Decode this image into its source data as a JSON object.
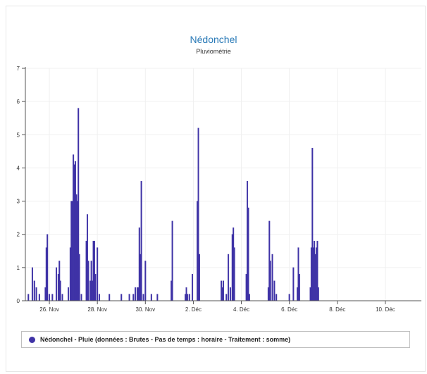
{
  "chart_data": {
    "type": "bar",
    "title": "Nédonchel",
    "subtitle": "Pluviométrie",
    "xlabel": "",
    "ylabel": "",
    "ylim": [
      0,
      7
    ],
    "yticks": [
      0,
      1,
      2,
      3,
      4,
      5,
      6,
      7
    ],
    "xlim": [
      "2013-11-25T00:00",
      "2013-12-11T12:00"
    ],
    "xticks": [
      {
        "label": "26. Nov",
        "date": "2013-11-26T00:00"
      },
      {
        "label": "28. Nov",
        "date": "2013-11-28T00:00"
      },
      {
        "label": "30. Nov",
        "date": "2013-11-30T00:00"
      },
      {
        "label": "2. Déc",
        "date": "2013-12-02T00:00"
      },
      {
        "label": "4. Déc",
        "date": "2013-12-04T00:00"
      },
      {
        "label": "6. Déc",
        "date": "2013-12-06T00:00"
      },
      {
        "label": "8. Déc",
        "date": "2013-12-08T00:00"
      },
      {
        "label": "10. Déc",
        "date": "2013-12-10T00:00"
      }
    ],
    "grid": true,
    "legend_position": "bottom",
    "series": [
      {
        "name": "Nédonchel - Pluie (données : Brutes - Pas de temps : horaire - Traitement : somme)",
        "color": "#3f33a6",
        "points": [
          [
            "2013-11-25T03:00",
            0.2
          ],
          [
            "2013-11-25T07:00",
            1.0
          ],
          [
            "2013-11-25T09:00",
            0.6
          ],
          [
            "2013-11-25T11:00",
            0.4
          ],
          [
            "2013-11-25T14:00",
            0.2
          ],
          [
            "2013-11-25T20:00",
            0.4
          ],
          [
            "2013-11-25T21:00",
            1.6
          ],
          [
            "2013-11-25T22:00",
            2.0
          ],
          [
            "2013-11-26T00:00",
            0.2
          ],
          [
            "2013-11-26T03:00",
            0.2
          ],
          [
            "2013-11-26T07:00",
            1.0
          ],
          [
            "2013-11-26T09:00",
            0.8
          ],
          [
            "2013-11-26T10:00",
            1.2
          ],
          [
            "2013-11-26T11:00",
            0.6
          ],
          [
            "2013-11-26T13:00",
            0.2
          ],
          [
            "2013-11-26T19:00",
            0.4
          ],
          [
            "2013-11-26T21:00",
            1.6
          ],
          [
            "2013-11-26T22:00",
            3.0
          ],
          [
            "2013-11-26T23:00",
            3.0
          ],
          [
            "2013-11-27T00:00",
            4.4
          ],
          [
            "2013-11-27T01:00",
            4.1
          ],
          [
            "2013-11-27T02:00",
            4.2
          ],
          [
            "2013-11-27T03:00",
            3.2
          ],
          [
            "2013-11-27T04:00",
            3.0
          ],
          [
            "2013-11-27T05:00",
            5.8
          ],
          [
            "2013-11-27T06:00",
            1.4
          ],
          [
            "2013-11-27T08:00",
            0.2
          ],
          [
            "2013-11-27T13:00",
            1.8
          ],
          [
            "2013-11-27T14:00",
            2.6
          ],
          [
            "2013-11-27T15:00",
            1.2
          ],
          [
            "2013-11-27T17:00",
            0.6
          ],
          [
            "2013-11-27T18:00",
            1.2
          ],
          [
            "2013-11-27T19:00",
            0.6
          ],
          [
            "2013-11-27T20:00",
            1.8
          ],
          [
            "2013-11-27T21:00",
            1.8
          ],
          [
            "2013-11-27T22:00",
            0.8
          ],
          [
            "2013-11-28T00:00",
            1.6
          ],
          [
            "2013-11-28T02:00",
            0.2
          ],
          [
            "2013-11-28T12:00",
            0.2
          ],
          [
            "2013-11-29T00:00",
            0.2
          ],
          [
            "2013-11-29T08:00",
            0.2
          ],
          [
            "2013-11-29T12:00",
            0.2
          ],
          [
            "2013-11-29T14:00",
            0.4
          ],
          [
            "2013-11-29T16:00",
            0.4
          ],
          [
            "2013-11-29T17:00",
            0.4
          ],
          [
            "2013-11-29T18:00",
            2.2
          ],
          [
            "2013-11-29T19:00",
            1.4
          ],
          [
            "2013-11-29T20:00",
            3.6
          ],
          [
            "2013-11-29T22:00",
            0.2
          ],
          [
            "2013-11-30T00:00",
            1.2
          ],
          [
            "2013-11-30T06:00",
            0.2
          ],
          [
            "2013-11-30T12:00",
            0.2
          ],
          [
            "2013-12-01T02:00",
            0.6
          ],
          [
            "2013-12-01T03:00",
            2.4
          ],
          [
            "2013-12-01T16:00",
            0.2
          ],
          [
            "2013-12-01T17:00",
            0.4
          ],
          [
            "2013-12-01T18:00",
            0.2
          ],
          [
            "2013-12-01T20:00",
            0.2
          ],
          [
            "2013-12-01T23:00",
            0.8
          ],
          [
            "2013-12-02T04:00",
            3.0
          ],
          [
            "2013-12-02T05:00",
            5.2
          ],
          [
            "2013-12-02T06:00",
            1.4
          ],
          [
            "2013-12-03T04:00",
            0.6
          ],
          [
            "2013-12-03T05:00",
            0.4
          ],
          [
            "2013-12-03T06:00",
            0.6
          ],
          [
            "2013-12-03T09:00",
            0.2
          ],
          [
            "2013-12-03T11:00",
            1.4
          ],
          [
            "2013-12-03T13:00",
            0.4
          ],
          [
            "2013-12-03T15:00",
            2.0
          ],
          [
            "2013-12-03T16:00",
            2.2
          ],
          [
            "2013-12-03T17:00",
            1.6
          ],
          [
            "2013-12-04T05:00",
            0.8
          ],
          [
            "2013-12-04T06:00",
            3.6
          ],
          [
            "2013-12-04T07:00",
            2.8
          ],
          [
            "2013-12-04T08:00",
            0.2
          ],
          [
            "2013-12-05T03:00",
            0.4
          ],
          [
            "2013-12-05T04:00",
            2.4
          ],
          [
            "2013-12-05T05:00",
            1.2
          ],
          [
            "2013-12-05T07:00",
            1.4
          ],
          [
            "2013-12-05T09:00",
            0.6
          ],
          [
            "2013-12-05T11:00",
            0.2
          ],
          [
            "2013-12-06T00:00",
            0.2
          ],
          [
            "2013-12-06T04:00",
            1.0
          ],
          [
            "2013-12-06T08:00",
            0.4
          ],
          [
            "2013-12-06T09:00",
            1.6
          ],
          [
            "2013-12-06T10:00",
            0.8
          ],
          [
            "2013-12-06T21:00",
            0.4
          ],
          [
            "2013-12-06T22:00",
            1.6
          ],
          [
            "2013-12-06T23:00",
            4.6
          ],
          [
            "2013-12-07T00:00",
            1.6
          ],
          [
            "2013-12-07T01:00",
            1.8
          ],
          [
            "2013-12-07T02:00",
            1.4
          ],
          [
            "2013-12-07T03:00",
            1.6
          ],
          [
            "2013-12-07T04:00",
            1.8
          ],
          [
            "2013-12-07T05:00",
            0.4
          ]
        ]
      }
    ]
  }
}
